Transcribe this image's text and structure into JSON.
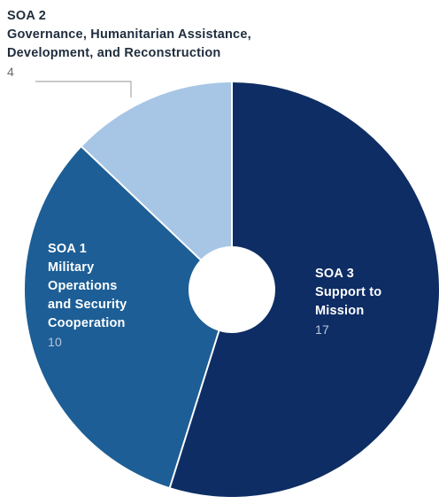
{
  "chart_data": {
    "type": "pie",
    "style": "donut",
    "start_angle": "12 o'clock",
    "direction": "clockwise",
    "slices": [
      {
        "id": "soa3",
        "title": "SOA 3",
        "subtitle": "Support to Mission",
        "lines": [
          "SOA 3",
          "Support to",
          "Mission"
        ],
        "value": 17,
        "value_text": "17",
        "color": "#0e2d64"
      },
      {
        "id": "soa1",
        "title": "SOA 1",
        "subtitle": "Military Operations and Security Cooperation",
        "lines": [
          "SOA 1",
          "Military",
          "Operations",
          "and Security",
          "Cooperation"
        ],
        "value": 10,
        "value_text": "10",
        "color": "#1d5e96"
      },
      {
        "id": "soa2",
        "title": "SOA 2",
        "subtitle": "Governance, Humanitarian Assistance, Development, and Reconstruction",
        "lines": [
          "SOA 2",
          "Governance, Humanitarian Assistance,",
          "Development, and Reconstruction"
        ],
        "value": 4,
        "value_text": "4",
        "color": "#a7c6e6"
      }
    ],
    "label_colors": {
      "inside_text": "#ffffff",
      "inside_value": "#b9c7de",
      "outside_text": "#1f2d3d",
      "outside_value": "#6b6b6b"
    },
    "separator_color": "#ffffff",
    "leader_line_color": "#a9a9a9"
  }
}
